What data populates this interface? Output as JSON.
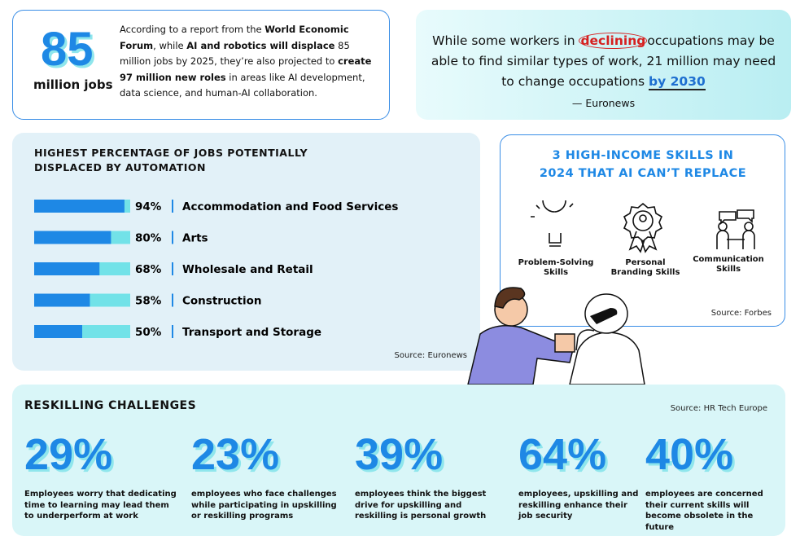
{
  "stat": {
    "number": "85",
    "label": "million jobs"
  },
  "intro": [
    {
      "text": "According to a report from the ",
      "bold": false
    },
    {
      "text": "World Economic Forum",
      "bold": true
    },
    {
      "text": ", while ",
      "bold": false
    },
    {
      "text": "AI and robotics will displace",
      "bold": true
    },
    {
      "text": " 85 million jobs by 2025, they’re also projected to ",
      "bold": false
    },
    {
      "text": "create 97 million new roles",
      "bold": true
    },
    {
      "text": " in areas like AI development, data science, and human-AI collaboration.",
      "bold": false
    }
  ],
  "quote": {
    "text": [
      {
        "text": "While some workers in "
      },
      {
        "text": "declining",
        "emphasis": "circle"
      },
      {
        "text": "occupations may be able to find similar types of work, 21 million may need to change occupations "
      },
      {
        "text": "by 2030",
        "emphasis": "underline"
      }
    ],
    "attribution": "—  Euronews"
  },
  "automation": {
    "title": "HIGHEST PERCENTAGE OF JOBS POTENTIALLY DISPLACED BY AUTOMATION",
    "categories": [
      "Accommodation and Food Services",
      "Arts",
      "Wholesale and Retail",
      "Construction",
      "Transport and Storage"
    ],
    "values": [
      94,
      80,
      68,
      58,
      50
    ],
    "value_labels": [
      "94%",
      "80%",
      "68%",
      "58%",
      "50%"
    ],
    "xlim": [
      0,
      100
    ],
    "color": "#1e88e5",
    "track_color": "#72e2e8",
    "source": "Source: Euronews"
  },
  "skills": {
    "title": "3 HIGH-INCOME SKILLS IN 2024 THAT AI CAN’T REPLACE",
    "items": [
      "Problem-Solving Skills",
      "Personal Branding Skills",
      "Communication Skills"
    ],
    "source": "Source: Forbes"
  },
  "reskilling": {
    "title": "RESKILLING CHALLENGES",
    "source": "Source: HR Tech Europe",
    "stats": [
      {
        "value": "29%",
        "text": "Employees worry that dedicating time to learning may lead them to underperform at work"
      },
      {
        "value": "23%",
        "text": "employees who face challenges while participating in upskilling or reskilling programs"
      },
      {
        "value": "39%",
        "text": "employees think the biggest drive for upskilling and reskilling is personal growth"
      },
      {
        "value": "64%",
        "text": "employees, upskilling and reskilling enhance their job security"
      },
      {
        "value": "40%",
        "text": "employees are concerned their current skills will become obsolete in the future"
      }
    ]
  }
}
